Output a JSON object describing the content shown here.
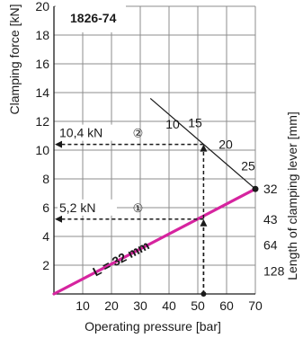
{
  "chart_data": {
    "type": "line",
    "title": "1826-74",
    "xlabel": "Operating pressure [bar]",
    "ylabel": "Clamping force [kN]",
    "right_label": "Length of clamping lever [mm]",
    "xlim": [
      0,
      70
    ],
    "ylim": [
      0,
      20
    ],
    "grid": true,
    "x_ticks": [
      10,
      20,
      30,
      40,
      50,
      60,
      70
    ],
    "y_ticks": [
      2,
      4,
      6,
      8,
      10,
      12,
      14,
      16,
      18,
      20
    ],
    "series": [
      {
        "name": "L = 32 mm",
        "color": "#d6249f",
        "x": [
          0,
          70
        ],
        "y": [
          0,
          7.3
        ]
      }
    ],
    "max_pressure_line": {
      "points": [
        {
          "x": 35,
          "y": 12.4,
          "label": "10"
        },
        {
          "x": 50,
          "y": 10.4,
          "label": "15"
        },
        {
          "x": 60,
          "y": 8.9,
          "label": "20"
        },
        {
          "x": 70,
          "y": 7.3,
          "label": "25"
        }
      ]
    },
    "lever_length_labels": [
      {
        "label": "32",
        "y": 7.3
      },
      {
        "label": "43",
        "y": 5.2
      },
      {
        "label": "64",
        "y": 3.4
      },
      {
        "label": "128",
        "y": 1.6
      }
    ],
    "reading_examples": [
      {
        "x": 52,
        "y": 10.4,
        "label": "10,4 kN",
        "marker": "②"
      },
      {
        "x": 52,
        "y": 5.2,
        "label": "5,2 kN",
        "marker": "①"
      }
    ]
  }
}
